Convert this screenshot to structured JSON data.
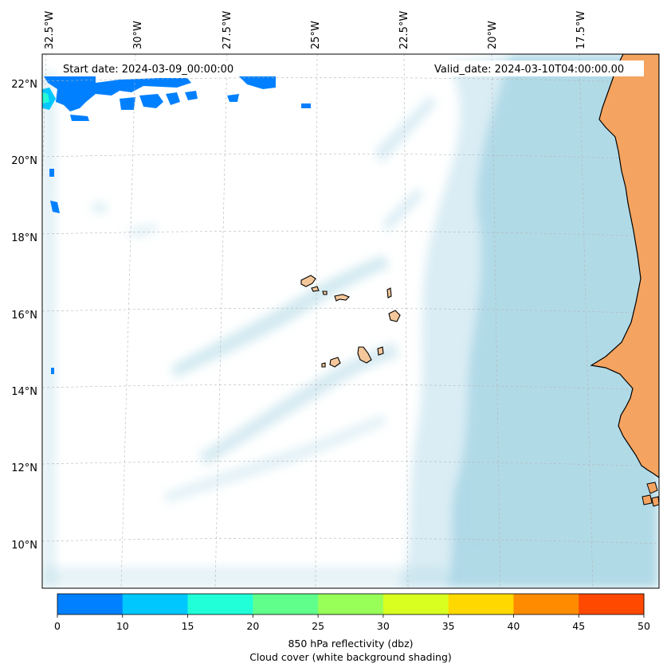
{
  "map": {
    "start_label": "Start date: 2024-03-09_00:00:00",
    "valid_label": "Valid_date: 2024-03-10T04:00:00.00",
    "lon_labels": [
      "32.5°W",
      "30°W",
      "27.5°W",
      "25°W",
      "22.5°W",
      "20°W",
      "17.5°W"
    ],
    "lat_labels": [
      "22°N",
      "20°N",
      "18°N",
      "16°N",
      "14°N",
      "12°N",
      "10°N"
    ],
    "extent": {
      "lon": [
        -32.7,
        -15.4
      ],
      "lat": [
        8.9,
        22.8
      ]
    },
    "land_color": "#f4a460",
    "cloud_color": "#add8e6",
    "reflectivity_low_color": "#0080ff"
  },
  "colorbar": {
    "ticks": [
      "0",
      "10",
      "15",
      "20",
      "25",
      "30",
      "35",
      "40",
      "45",
      "50"
    ],
    "colors": [
      "#0080ff",
      "#00c8ff",
      "#20ffd8",
      "#60ff8c",
      "#98ff58",
      "#d8ff20",
      "#ffd800",
      "#ff8c00",
      "#ff4800"
    ],
    "label_line1": "850 hPa reflectivity (dbz)",
    "label_line2": "Cloud cover (white background shading)"
  }
}
